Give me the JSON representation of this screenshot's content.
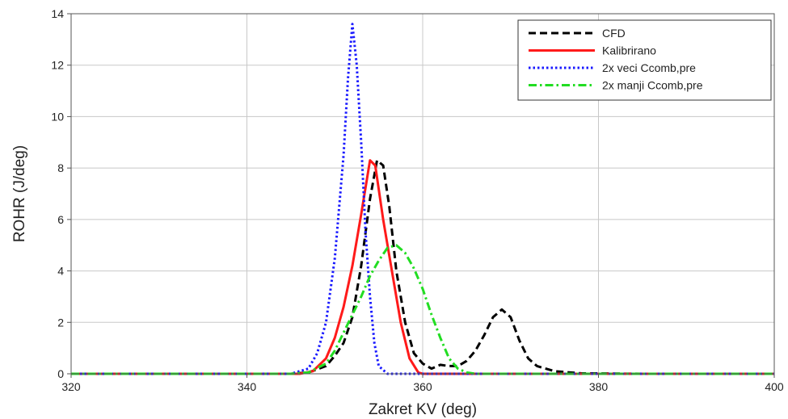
{
  "chart_data": {
    "type": "line",
    "title": "",
    "xlabel": "Zakret KV (deg)",
    "ylabel": "ROHR (J/deg)",
    "xlim": [
      320,
      400
    ],
    "ylim": [
      0,
      14
    ],
    "xticks": [
      320,
      340,
      360,
      380,
      400
    ],
    "yticks": [
      0,
      2,
      4,
      6,
      8,
      10,
      12,
      14
    ],
    "grid": true,
    "legend_position": "top-right",
    "series": [
      {
        "name": "CFD",
        "color": "#000000",
        "dash": "dashed",
        "points": [
          [
            320,
            0
          ],
          [
            345,
            0
          ],
          [
            347,
            0.05
          ],
          [
            349,
            0.3
          ],
          [
            350,
            0.7
          ],
          [
            351,
            1.2
          ],
          [
            352,
            2.2
          ],
          [
            353,
            4.2
          ],
          [
            354,
            6.8
          ],
          [
            354.8,
            8.3
          ],
          [
            355.5,
            8.1
          ],
          [
            356.2,
            6.5
          ],
          [
            357,
            4.0
          ],
          [
            358,
            2.0
          ],
          [
            359,
            0.8
          ],
          [
            360,
            0.4
          ],
          [
            361,
            0.2
          ],
          [
            362,
            0.35
          ],
          [
            363,
            0.3
          ],
          [
            364,
            0.3
          ],
          [
            365,
            0.5
          ],
          [
            366,
            0.9
          ],
          [
            367,
            1.5
          ],
          [
            368,
            2.2
          ],
          [
            369,
            2.5
          ],
          [
            370,
            2.2
          ],
          [
            371,
            1.3
          ],
          [
            372,
            0.6
          ],
          [
            373,
            0.3
          ],
          [
            375,
            0.1
          ],
          [
            378,
            0.02
          ],
          [
            385,
            0
          ],
          [
            400,
            0
          ]
        ]
      },
      {
        "name": "Kalibrirano",
        "color": "#ff1a1a",
        "dash": "solid",
        "points": [
          [
            320,
            0
          ],
          [
            346,
            0
          ],
          [
            347.5,
            0.1
          ],
          [
            349,
            0.6
          ],
          [
            350,
            1.4
          ],
          [
            351,
            2.6
          ],
          [
            352,
            4.2
          ],
          [
            353,
            6.2
          ],
          [
            354,
            8.3
          ],
          [
            354.6,
            8.1
          ],
          [
            355.5,
            6.0
          ],
          [
            356.5,
            4.0
          ],
          [
            357.5,
            2.0
          ],
          [
            358.5,
            0.6
          ],
          [
            359.5,
            0.05
          ],
          [
            360,
            0
          ],
          [
            400,
            0
          ]
        ]
      },
      {
        "name": "2x veci Ccomb,pre",
        "color": "#1a1aff",
        "dash": "dotted",
        "points": [
          [
            320,
            0
          ],
          [
            345,
            0
          ],
          [
            347,
            0.2
          ],
          [
            348,
            0.8
          ],
          [
            349,
            2.0
          ],
          [
            350,
            4.5
          ],
          [
            351,
            8.5
          ],
          [
            351.5,
            11.5
          ],
          [
            352,
            13.6
          ],
          [
            352.5,
            12.0
          ],
          [
            353,
            9.0
          ],
          [
            353.5,
            5.5
          ],
          [
            354,
            3.0
          ],
          [
            354.5,
            1.2
          ],
          [
            355,
            0.3
          ],
          [
            356,
            0
          ],
          [
            400,
            0
          ]
        ]
      },
      {
        "name": "2x manji Ccomb,pre",
        "color": "#22dd22",
        "dash": "dashdot",
        "points": [
          [
            320,
            0
          ],
          [
            345,
            0
          ],
          [
            347,
            0.05
          ],
          [
            349,
            0.4
          ],
          [
            350,
            0.9
          ],
          [
            351,
            1.6
          ],
          [
            352,
            2.3
          ],
          [
            353,
            3.0
          ],
          [
            354,
            3.8
          ],
          [
            355,
            4.4
          ],
          [
            356,
            4.9
          ],
          [
            357,
            5.0
          ],
          [
            358,
            4.7
          ],
          [
            359,
            4.1
          ],
          [
            360,
            3.3
          ],
          [
            361,
            2.3
          ],
          [
            362,
            1.4
          ],
          [
            363,
            0.6
          ],
          [
            364,
            0.2
          ],
          [
            365,
            0.05
          ],
          [
            366,
            0
          ],
          [
            400,
            0
          ]
        ]
      }
    ]
  }
}
